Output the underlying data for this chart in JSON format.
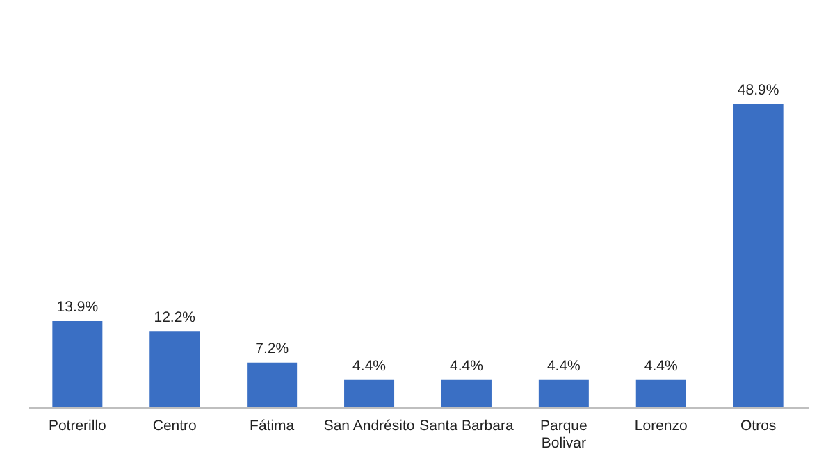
{
  "chart_data": {
    "type": "bar",
    "categories": [
      "Potrerillo",
      "Centro",
      "Fátima",
      "San Andrésito",
      "Santa Barbara",
      "Parque Bolivar",
      "Lorenzo",
      "Otros"
    ],
    "values": [
      13.9,
      12.2,
      7.2,
      4.4,
      4.4,
      4.4,
      4.4,
      48.9
    ],
    "value_labels": [
      "13.9%",
      "12.2%",
      "7.2%",
      "4.4%",
      "4.4%",
      "4.4%",
      "4.4%",
      "48.9%"
    ],
    "color": "#3a6fc4"
  }
}
